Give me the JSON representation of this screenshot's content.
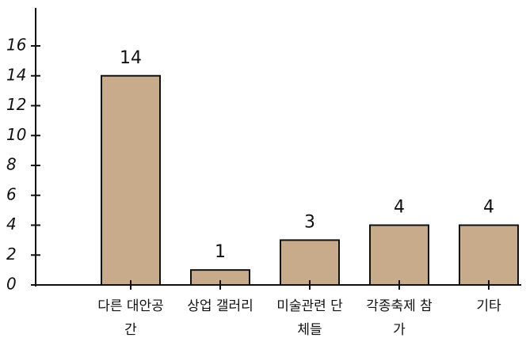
{
  "chart_data": {
    "type": "bar",
    "categories": [
      "다른 대안공간",
      "상업 갤러리",
      "미술관련 단체들",
      "각종축제 참가",
      "기타"
    ],
    "values": [
      14,
      1,
      3,
      4,
      4
    ],
    "color": "#c8ab8a",
    "ylim": [
      0,
      16
    ],
    "yticks": [
      0,
      2,
      4,
      6,
      8,
      10,
      12,
      14,
      16
    ]
  }
}
